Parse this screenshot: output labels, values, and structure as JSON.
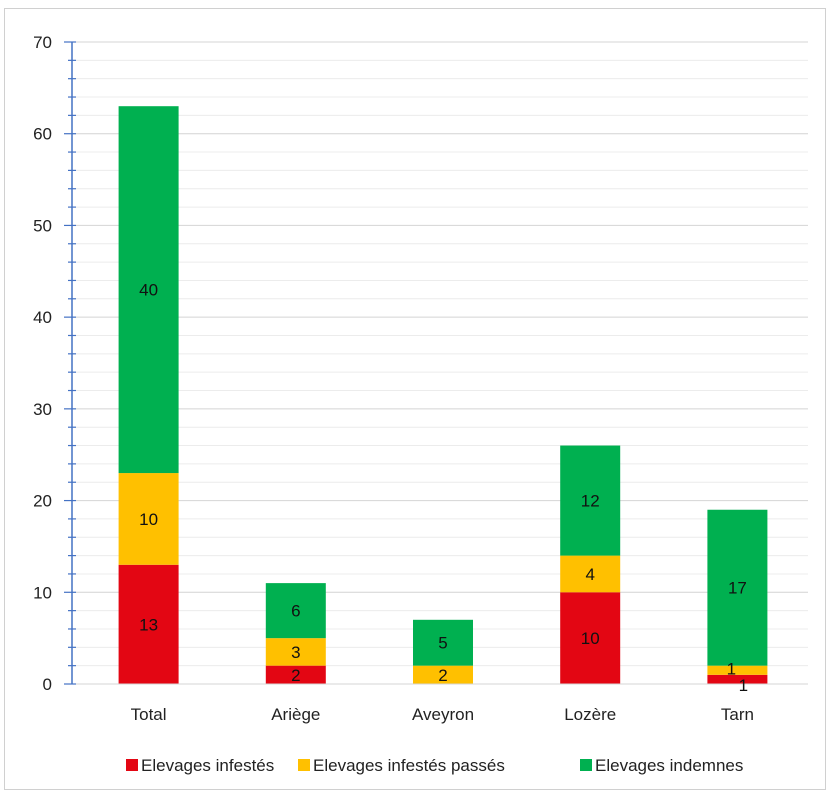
{
  "chart_data": {
    "type": "bar",
    "stacked": true,
    "categories": [
      "Total",
      "Ariège",
      "Aveyron",
      "Lozère",
      "Tarn"
    ],
    "series": [
      {
        "name": "Elevages infestés",
        "color": "#e30613",
        "values": [
          13,
          2,
          0,
          10,
          1
        ]
      },
      {
        "name": "Elevages infestés passés",
        "color": "#ffc000",
        "values": [
          10,
          3,
          2,
          4,
          1
        ]
      },
      {
        "name": "Elevages indemnes",
        "color": "#00b050",
        "values": [
          40,
          6,
          5,
          12,
          17
        ]
      }
    ],
    "data_labels": [
      [
        "13",
        "2",
        "",
        "10",
        "1"
      ],
      [
        "10",
        "3",
        "2",
        "4",
        "1"
      ],
      [
        "40",
        "6",
        "5",
        "12",
        "17"
      ]
    ],
    "ylim": [
      0,
      70
    ],
    "y_ticks": [
      "0",
      "10",
      "20",
      "30",
      "40",
      "50",
      "60",
      "70"
    ],
    "grid": true,
    "legend_position": "bottom",
    "title": "",
    "xlabel": "",
    "ylabel": ""
  }
}
